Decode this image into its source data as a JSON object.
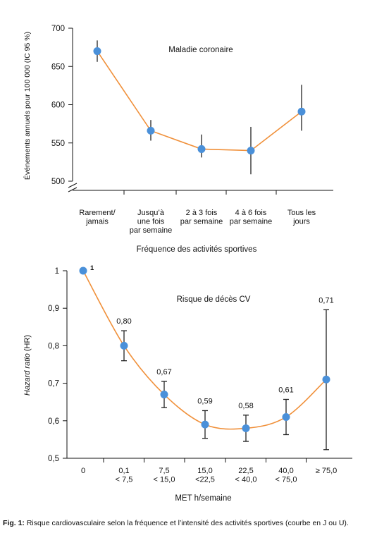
{
  "caption": {
    "label": "Fig. 1:",
    "text": "Risque cardiovasculaire selon la fréquence et l’intensité des activités sportives (courbe en J ou U)."
  },
  "colors": {
    "line": "#f0903a",
    "marker": "#4a90d9",
    "errorbar": "#222222",
    "axis": "#111111"
  },
  "chart_data": [
    {
      "type": "line",
      "title": "Maladie coronaire",
      "xlabel": "Fréquence des activités sportives",
      "ylabel": "Événements annuels pour 100 000 (IC 95 %)",
      "categories": [
        [
          "Rarement/",
          "jamais"
        ],
        [
          "Jusqu’à",
          "une fois",
          "par semaine"
        ],
        [
          "2 à 3 fois",
          "par semaine"
        ],
        [
          "4 à 6 fois",
          "par semaine"
        ],
        [
          "Tous les",
          "jours"
        ]
      ],
      "values": [
        670,
        566,
        542,
        540,
        591
      ],
      "ci_low": [
        656,
        553,
        531,
        509,
        566
      ],
      "ci_high": [
        684,
        580,
        561,
        571,
        626
      ],
      "yticks": [
        500,
        550,
        600,
        650,
        700
      ],
      "ylim": [
        500,
        700
      ],
      "axis_break": true,
      "curve": "polyline"
    },
    {
      "type": "line",
      "title": "Risque de décès CV",
      "xlabel": "MET h/semaine",
      "ylabel_italic": "Hazard ratio",
      "ylabel_rest": " (HR)",
      "categories": [
        [
          "0"
        ],
        [
          "0,1",
          "< 7,5"
        ],
        [
          "7,5",
          "< 15,0"
        ],
        [
          "15,0",
          "<22,5"
        ],
        [
          "22,5",
          "< 40,0"
        ],
        [
          "40,0",
          "< 75,0"
        ],
        [
          "≥ 75,0"
        ]
      ],
      "values": [
        1.0,
        0.8,
        0.67,
        0.59,
        0.58,
        0.61,
        0.71
      ],
      "value_labels": [
        "1",
        "0,80",
        "0,67",
        "0,59",
        "0,58",
        "0,61",
        "0,71"
      ],
      "ci_low": [
        null,
        0.76,
        0.635,
        0.553,
        0.545,
        0.563,
        0.523
      ],
      "ci_high": [
        null,
        0.84,
        0.705,
        0.627,
        0.615,
        0.657,
        0.896
      ],
      "yticks": [
        0.5,
        0.6,
        0.7,
        0.8,
        0.9,
        1.0
      ],
      "ytick_labels": [
        "0,5",
        "0,6",
        "0,7",
        "0,8",
        "0,9",
        "1"
      ],
      "ylim": [
        0.5,
        1.0
      ],
      "curve": "smooth"
    }
  ]
}
